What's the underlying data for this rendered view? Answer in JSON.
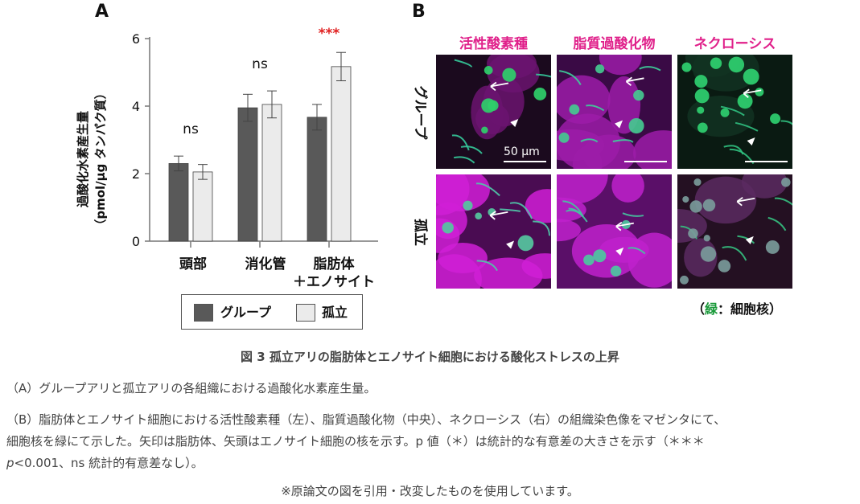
{
  "panel_a": {
    "letter": "A",
    "ylabel_line1": "過酸化水素産生量",
    "ylabel_line2": "（pmol/μg タンパク質）",
    "yticks": [
      "0",
      "2",
      "4",
      "6"
    ],
    "categories": [
      "頭部",
      "消化管",
      "脂肪体"
    ],
    "category3_line2": "＋エノサイト",
    "significance": [
      "ns",
      "ns",
      "***"
    ],
    "legend": {
      "group": "グループ",
      "isolated": "孤立"
    }
  },
  "chart_data": {
    "type": "bar",
    "categories": [
      "頭部",
      "消化管",
      "脂肪体 ＋エノサイト"
    ],
    "series": [
      {
        "name": "グループ",
        "values": [
          2.3,
          3.95,
          3.67
        ],
        "errors": [
          0.22,
          0.4,
          0.38
        ]
      },
      {
        "name": "孤立",
        "values": [
          2.05,
          4.05,
          5.17
        ],
        "errors": [
          0.22,
          0.4,
          0.42
        ]
      }
    ],
    "ylim": [
      0,
      6
    ],
    "yticks": [
      0,
      2,
      4,
      6
    ],
    "ylabel": "過酸化水素産生量（pmol/μg タンパク質）",
    "annotations": [
      "ns",
      "ns",
      "***"
    ],
    "colors": {
      "グループ": "#595959",
      "孤立": "#ebebeb",
      "sig": "#e02020"
    },
    "legend_placement": "bottom"
  },
  "panel_b": {
    "letter": "B",
    "columns": [
      "活性酸素種",
      "脂質過酸化物",
      "ネクローシス"
    ],
    "rows": [
      "グループ",
      "孤立"
    ],
    "scale_bar": "50 μm",
    "nuclei_note_open": "（",
    "nuclei_note_green": "緑",
    "nuclei_note_rest": "：細胞核）",
    "colors": {
      "magenta": "#c21fc2",
      "green": "#2fd07a",
      "title": "#e0208a"
    }
  },
  "caption": {
    "title": "図 3  孤立アリの脂肪体とエノサイト細胞における酸化ストレスの上昇",
    "para_a": "（A）グループアリと孤立アリの各組織における過酸化水素産生量。",
    "para_b1": "（B）脂肪体とエノサイト細胞における活性酸素種（左）、脂質過酸化物（中央）、ネクローシス（右）の組織染色像をマゼンタにて、",
    "para_b2": "細胞核を緑にて示した。矢印は脂肪体、矢頭はエノサイト細胞の核を示す。p 値（＊）は統計的な有意差の大きさを示す（＊＊＊",
    "para_b3_p": "p",
    "para_b3_rest": "<0.001、ns 統計的有意差なし）。",
    "note": "※原論文の図を引用・改変したものを使用しています。"
  }
}
